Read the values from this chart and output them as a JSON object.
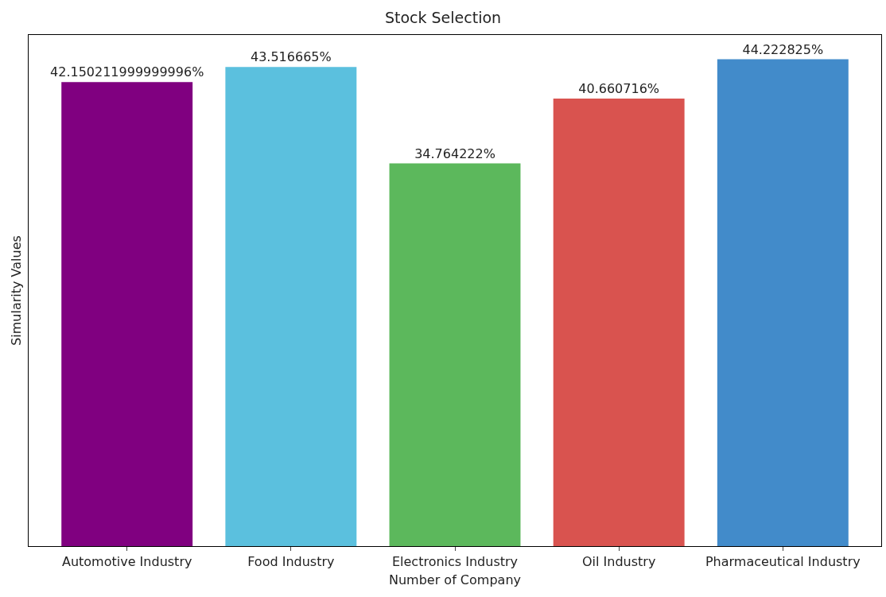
{
  "chart_data": {
    "type": "bar",
    "title": "Stock Selection",
    "xlabel": "Number of Company",
    "ylabel": "Simularity Values",
    "categories": [
      "Automotive Industry",
      "Food Industry",
      "Electronics Industry",
      "Oil Industry",
      "Pharmaceutical Industry"
    ],
    "values": [
      42.150211999999996,
      43.516665,
      34.764222,
      40.660716,
      44.222825
    ],
    "colors": [
      "#800080",
      "#5bc0de",
      "#5cb85c",
      "#d9534f",
      "#428bca"
    ],
    "value_labels": [
      "42.150211999999996%",
      "43.516665%",
      "34.764222%",
      "40.660716%",
      "44.222825%"
    ],
    "ylim": [
      0,
      46.43
    ],
    "tick_labels": "x"
  }
}
